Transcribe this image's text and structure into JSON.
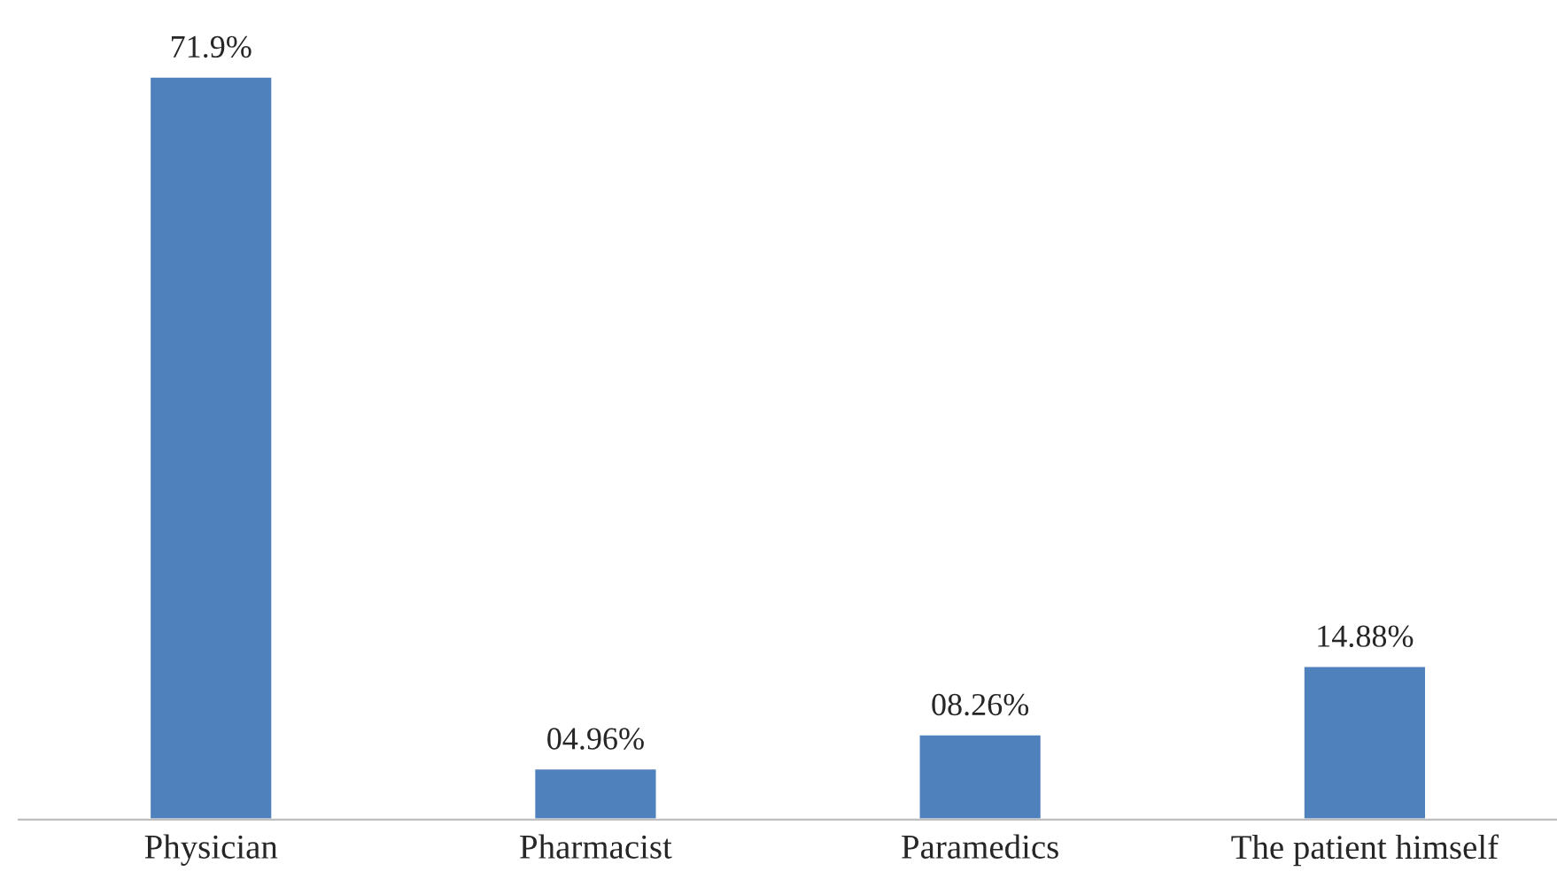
{
  "chart_data": {
    "type": "bar",
    "categories": [
      "Physician",
      "Pharmacist",
      "Paramedics",
      "The patient himself"
    ],
    "values": [
      71.9,
      4.96,
      8.26,
      14.88
    ],
    "value_labels": [
      "71.9%",
      "04.96%",
      "08.26%",
      "14.88%"
    ],
    "color": "#4f81bd",
    "tick_labels": "x",
    "grid": false,
    "legend": false
  }
}
